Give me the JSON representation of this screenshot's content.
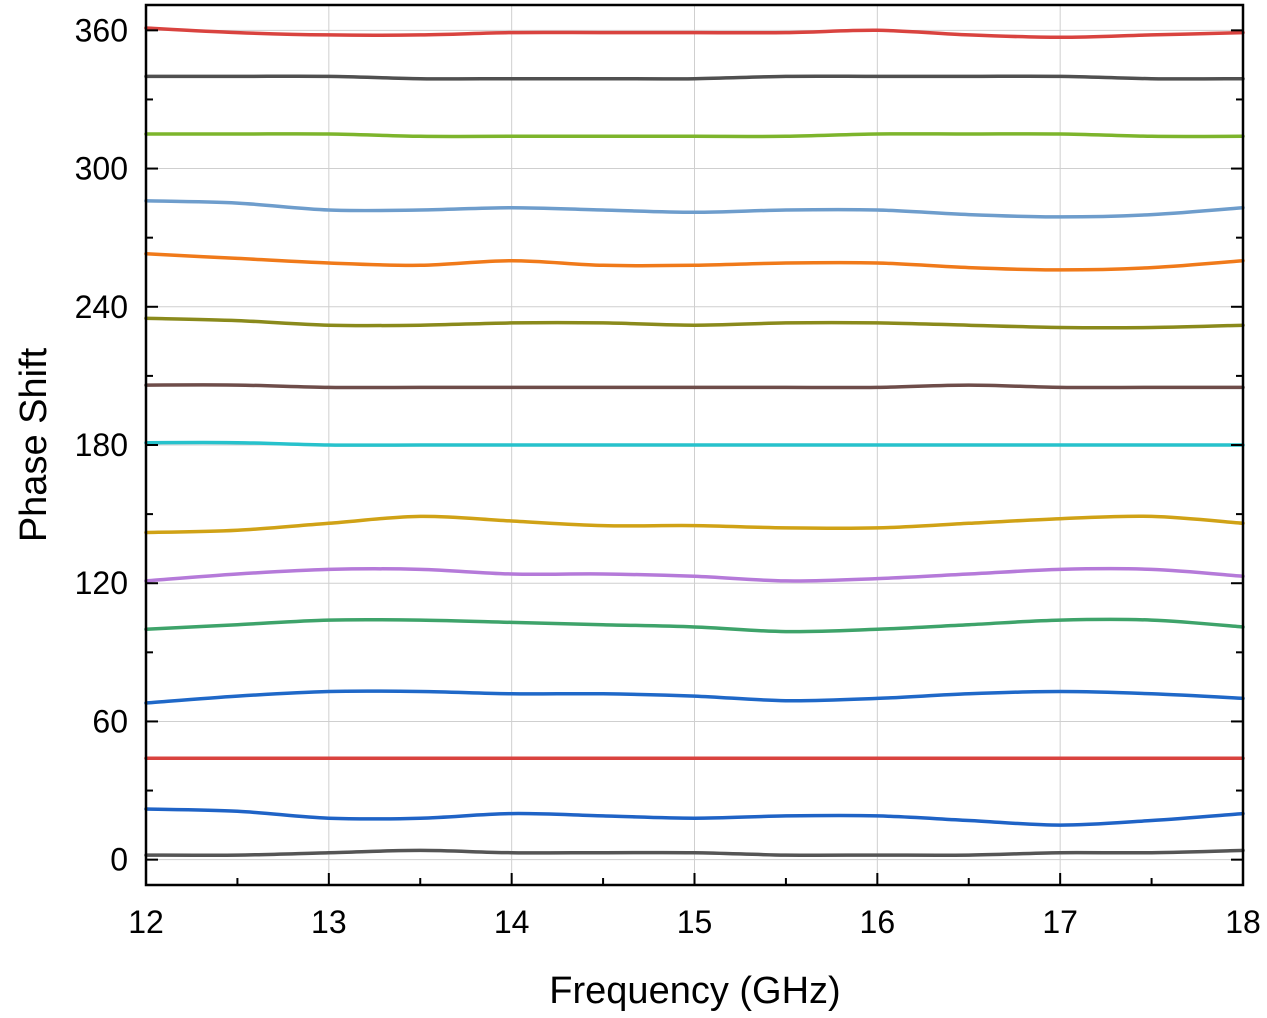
{
  "chart_data": {
    "type": "line",
    "title": "",
    "xlabel": "Frequency (GHz)",
    "ylabel": "Phase Shift",
    "xlim": [
      12,
      18
    ],
    "ylim": [
      -11,
      371
    ],
    "xticks": [
      12,
      13,
      14,
      15,
      16,
      17,
      18
    ],
    "yticks": [
      0,
      60,
      120,
      180,
      240,
      300,
      360
    ],
    "grid": true,
    "legend": "none",
    "x": [
      12,
      12.5,
      13,
      13.5,
      14,
      14.5,
      15,
      15.5,
      16,
      16.5,
      17,
      17.5,
      18
    ],
    "series": [
      {
        "color": "#555555",
        "values": [
          2,
          2,
          3,
          4,
          3,
          3,
          3,
          2,
          2,
          2,
          3,
          3,
          4
        ]
      },
      {
        "color": "#1f63c6",
        "values": [
          22,
          21,
          18,
          18,
          20,
          19,
          18,
          19,
          19,
          17,
          15,
          17,
          20
        ]
      },
      {
        "color": "#d9433f",
        "values": [
          44,
          44,
          44,
          44,
          44,
          44,
          44,
          44,
          44,
          44,
          44,
          44,
          44
        ]
      },
      {
        "color": "#1f68c8",
        "values": [
          68,
          71,
          73,
          73,
          72,
          72,
          71,
          69,
          70,
          72,
          73,
          72,
          70
        ]
      },
      {
        "color": "#3ea36a",
        "values": [
          100,
          102,
          104,
          104,
          103,
          102,
          101,
          99,
          100,
          102,
          104,
          104,
          101
        ]
      },
      {
        "color": "#b57ad9",
        "values": [
          121,
          124,
          126,
          126,
          124,
          124,
          123,
          121,
          122,
          124,
          126,
          126,
          123
        ]
      },
      {
        "color": "#d0a216",
        "values": [
          142,
          143,
          146,
          149,
          147,
          145,
          145,
          144,
          144,
          146,
          148,
          149,
          146
        ]
      },
      {
        "color": "#27c2cc",
        "values": [
          181,
          181,
          180,
          180,
          180,
          180,
          180,
          180,
          180,
          180,
          180,
          180,
          180
        ]
      },
      {
        "color": "#6e4d4a",
        "values": [
          206,
          206,
          205,
          205,
          205,
          205,
          205,
          205,
          205,
          206,
          205,
          205,
          205
        ]
      },
      {
        "color": "#8a8a1c",
        "values": [
          235,
          234,
          232,
          232,
          233,
          233,
          232,
          233,
          233,
          232,
          231,
          231,
          232
        ]
      },
      {
        "color": "#f07a1a",
        "values": [
          263,
          261,
          259,
          258,
          260,
          258,
          258,
          259,
          259,
          257,
          256,
          257,
          260
        ]
      },
      {
        "color": "#6e9dcc",
        "values": [
          286,
          285,
          282,
          282,
          283,
          282,
          281,
          282,
          282,
          280,
          279,
          280,
          283
        ]
      },
      {
        "color": "#7db52c",
        "values": [
          315,
          315,
          315,
          314,
          314,
          314,
          314,
          314,
          315,
          315,
          315,
          314,
          314
        ]
      },
      {
        "color": "#505050",
        "values": [
          340,
          340,
          340,
          339,
          339,
          339,
          339,
          340,
          340,
          340,
          340,
          339,
          339
        ]
      },
      {
        "color": "#d9433f",
        "values": [
          361,
          359,
          358,
          358,
          359,
          359,
          359,
          359,
          360,
          358,
          357,
          358,
          359
        ]
      }
    ]
  }
}
